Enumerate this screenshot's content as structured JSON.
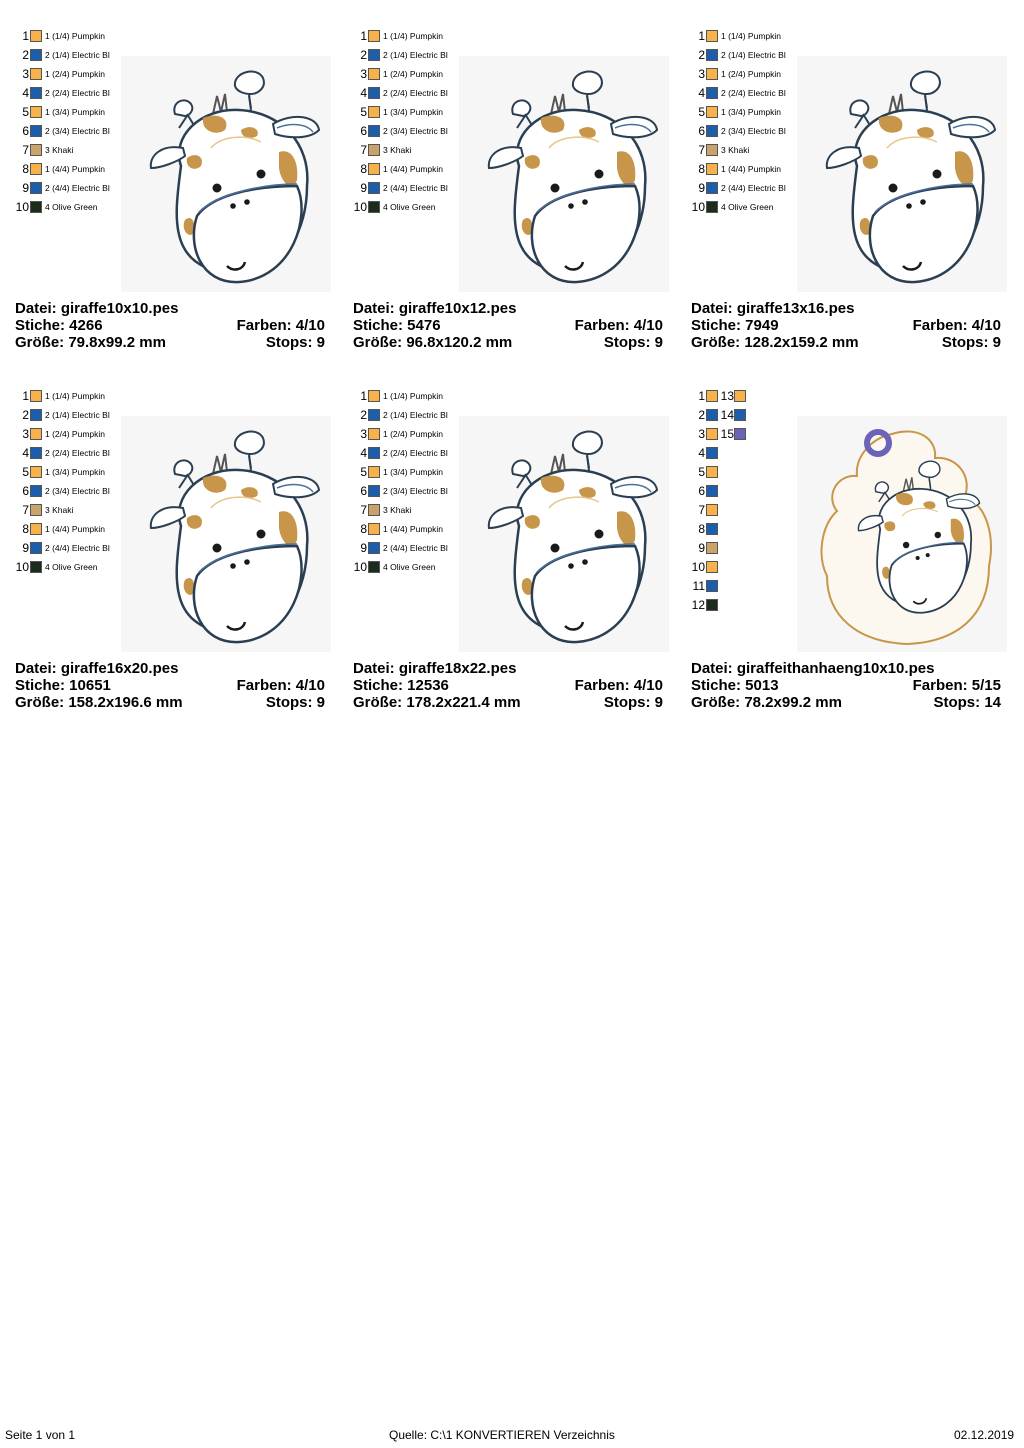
{
  "colors": {
    "pumpkin": "#f7b24a",
    "blue": "#1b5eab",
    "khaki": "#c9a36b",
    "olive": "#1d2b1c",
    "purple": "#6a63b8",
    "spot": "#c8964a"
  },
  "thread_list": [
    {
      "num": "1",
      "label": "1 (1/4) Pumpkin",
      "color": "#f7b24a"
    },
    {
      "num": "2",
      "label": "2 (1/4) Electric Bl",
      "color": "#1b5eab"
    },
    {
      "num": "3",
      "label": "1 (2/4) Pumpkin",
      "color": "#f7b24a"
    },
    {
      "num": "4",
      "label": "2 (2/4) Electric Bl",
      "color": "#1b5eab"
    },
    {
      "num": "5",
      "label": "1 (3/4) Pumpkin",
      "color": "#f7b24a"
    },
    {
      "num": "6",
      "label": "2 (3/4) Electric Bl",
      "color": "#1b5eab"
    },
    {
      "num": "7",
      "label": "3 Khaki",
      "color": "#c9a36b"
    },
    {
      "num": "8",
      "label": "1 (4/4) Pumpkin",
      "color": "#f7b24a"
    },
    {
      "num": "9",
      "label": "2 (4/4) Electric Bl",
      "color": "#1b5eab"
    },
    {
      "num": "10",
      "label": "4 Olive Green",
      "color": "#1d2b1c"
    }
  ],
  "designs": [
    {
      "datei": "Datei: giraffe10x10.pes",
      "stiche": "Stiche: 4266",
      "farben": "Farben: 4/10",
      "groesse": "Größe: 79.8x99.2 mm",
      "stops": "Stops: 9"
    },
    {
      "datei": "Datei: giraffe10x12.pes",
      "stiche": "Stiche: 5476",
      "farben": "Farben: 4/10",
      "groesse": "Größe: 96.8x120.2 mm",
      "stops": "Stops: 9"
    },
    {
      "datei": "Datei: giraffe13x16.pes",
      "stiche": "Stiche: 7949",
      "farben": "Farben: 4/10",
      "groesse": "Größe: 128.2x159.2 mm",
      "stops": "Stops: 9"
    },
    {
      "datei": "Datei: giraffe16x20.pes",
      "stiche": "Stiche: 10651",
      "farben": "Farben: 4/10",
      "groesse": "Größe: 158.2x196.6 mm",
      "stops": "Stops: 9"
    },
    {
      "datei": "Datei: giraffe18x22.pes",
      "stiche": "Stiche: 12536",
      "farben": "Farben: 4/10",
      "groesse": "Größe: 178.2x221.4 mm",
      "stops": "Stops: 9"
    },
    {
      "datei": "Datei: giraffeithanhaeng10x10.pes",
      "stiche": "Stiche: 5013",
      "farben": "Farben: 5/15",
      "groesse": "Größe: 78.2x99.2 mm",
      "stops": "Stops: 14"
    }
  ],
  "hanger_threads": [
    {
      "num": "1",
      "color": "#f7b24a",
      "num2": "13",
      "color2": "#f7b24a"
    },
    {
      "num": "2",
      "color": "#1b5eab",
      "num2": "14",
      "color2": "#1b5eab"
    },
    {
      "num": "3",
      "color": "#f7b24a",
      "num2": "15",
      "color2": "#6a63b8"
    },
    {
      "num": "4",
      "color": "#1b5eab"
    },
    {
      "num": "5",
      "color": "#f7b24a"
    },
    {
      "num": "6",
      "color": "#1b5eab"
    },
    {
      "num": "7",
      "color": "#f7b24a"
    },
    {
      "num": "8",
      "color": "#1b5eab"
    },
    {
      "num": "9",
      "color": "#c9a36b"
    },
    {
      "num": "10",
      "color": "#f7b24a"
    },
    {
      "num": "11",
      "color": "#1b5eab"
    },
    {
      "num": "12",
      "color": "#1d2b1c"
    }
  ],
  "footer": {
    "page": "Seite 1 von 1",
    "source": "Quelle: C:\\1 KONVERTIEREN Verzeichnis",
    "date": "02.12.2019"
  }
}
